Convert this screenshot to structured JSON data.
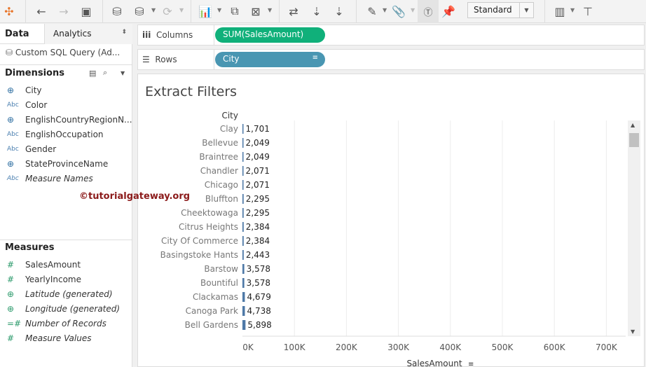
{
  "toolbar": {
    "view_mode": "Standard",
    "icons": [
      "tableau-logo-icon",
      "back-icon",
      "forward-icon",
      "save-icon",
      "new-datasource-icon",
      "pause-updates-icon",
      "refresh-icon",
      "new-worksheet-icon",
      "duplicate-icon",
      "clear-sheet-icon",
      "swap-icon",
      "sort-ascending-icon",
      "sort-descending-icon",
      "highlight-icon",
      "attach-icon",
      "show-labels-icon",
      "pin-icon",
      "show-me-icon",
      "presentation-icon"
    ]
  },
  "left_panel": {
    "tab_data": "Data",
    "tab_analytics": "Analytics",
    "datasource": "Custom SQL Query (Ad...",
    "dimensions_label": "Dimensions",
    "dimensions": [
      {
        "type": "geo",
        "label": "City"
      },
      {
        "type": "Abc",
        "label": "Color"
      },
      {
        "type": "geo",
        "label": "EnglishCountryRegionN..."
      },
      {
        "type": "Abc",
        "label": "EnglishOccupation"
      },
      {
        "type": "Abc",
        "label": "Gender"
      },
      {
        "type": "geo",
        "label": "StateProvinceName"
      },
      {
        "type": "Abc",
        "label": "Measure Names"
      }
    ],
    "measures_label": "Measures",
    "measures": [
      {
        "type": "#",
        "label": "SalesAmount"
      },
      {
        "type": "#",
        "label": "YearlyIncome"
      },
      {
        "type": "geo",
        "label": "Latitude (generated)"
      },
      {
        "type": "geo",
        "label": "Longitude (generated)"
      },
      {
        "type": "=#",
        "label": "Number of Records"
      },
      {
        "type": "#",
        "label": "Measure Values"
      }
    ]
  },
  "shelves": {
    "columns_label": "Columns",
    "columns_pill": "SUM(SalesAmount)",
    "rows_label": "Rows",
    "rows_pill": "City"
  },
  "colors": {
    "measure_pill": "#10b07a",
    "dimension_pill": "#4996b2",
    "bar": "#4e79a7"
  },
  "watermark": "©tutorialgateway.org",
  "chart_data": {
    "type": "bar",
    "orientation": "horizontal",
    "title": "Extract Filters",
    "row_header": "City",
    "xlabel": "SalesAmount",
    "xlim": [
      0,
      750000
    ],
    "xticks": [
      "0K",
      "100K",
      "200K",
      "300K",
      "400K",
      "500K",
      "600K",
      "700K"
    ],
    "grid": true,
    "categories": [
      "Clay",
      "Bellevue",
      "Braintree",
      "Chandler",
      "Chicago",
      "Bluffton",
      "Cheektowaga",
      "Citrus Heights",
      "City Of Commerce",
      "Basingstoke Hants",
      "Barstow",
      "Bountiful",
      "Clackamas",
      "Canoga Park",
      "Bell Gardens"
    ],
    "values": [
      1701,
      2049,
      2049,
      2071,
      2071,
      2295,
      2295,
      2384,
      2384,
      2443,
      3578,
      3578,
      4679,
      4738,
      5898
    ],
    "labels": [
      "1,701",
      "2,049",
      "2,049",
      "2,071",
      "2,071",
      "2,295",
      "2,295",
      "2,384",
      "2,384",
      "2,443",
      "3,578",
      "3,578",
      "4,679",
      "4,738",
      "5,898"
    ]
  }
}
